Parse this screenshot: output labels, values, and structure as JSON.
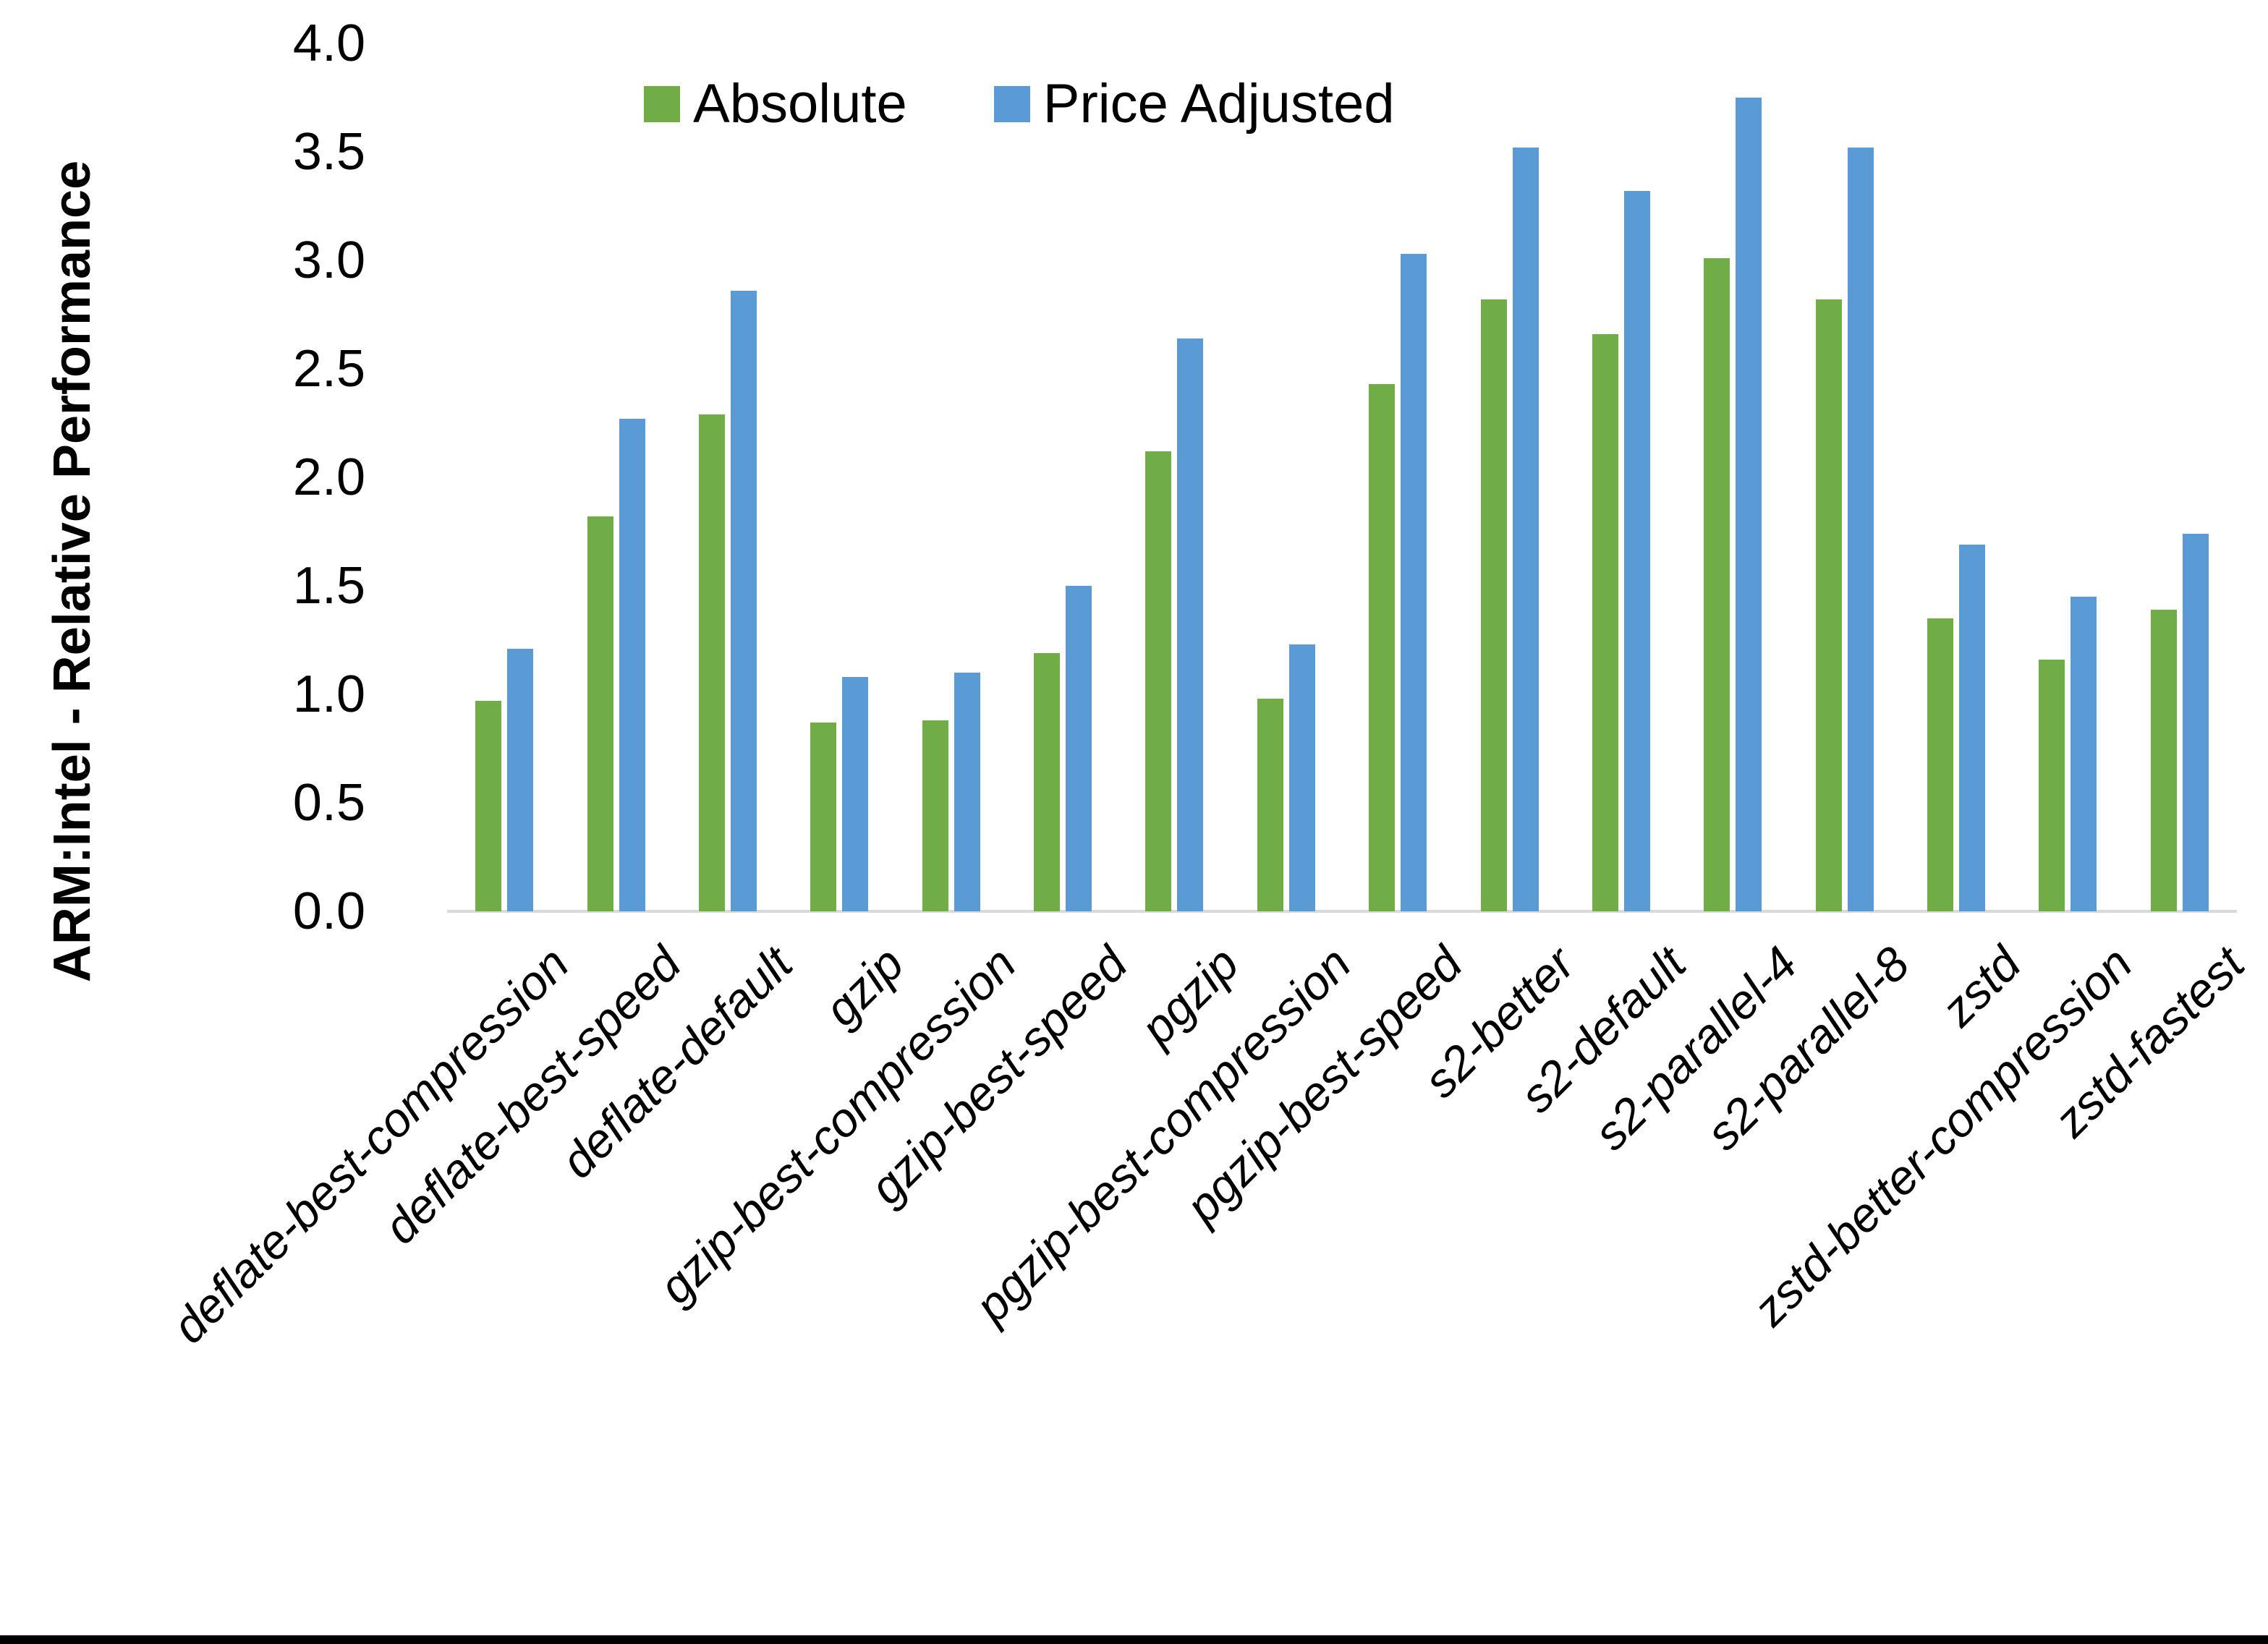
{
  "chart_data": {
    "type": "bar",
    "title": "",
    "xlabel": "",
    "ylabel": "ARM:Intel - Relative Performance",
    "ylim": [
      0.0,
      4.0
    ],
    "ytick_step": 0.5,
    "yticks": [
      "0.0",
      "0.5",
      "1.0",
      "1.5",
      "2.0",
      "2.5",
      "3.0",
      "3.5",
      "4.0"
    ],
    "grid": false,
    "legend_position": "top-center",
    "categories": [
      "deflate-best-compression",
      "deflate-best-speed",
      "deflate-default",
      "gzip",
      "gzip-best-compression",
      "gzip-best-speed",
      "pgzip",
      "pgzip-best-compression",
      "pgzip-best-speed",
      "s2-better",
      "s2-default",
      "s2-parallel-4",
      "s2-parallel-8",
      "zstd",
      "zstd-better-compression",
      "zstd-fastest"
    ],
    "series": [
      {
        "name": "Absolute",
        "color": "#70AD47",
        "values": [
          0.97,
          1.82,
          2.29,
          0.87,
          0.88,
          1.19,
          2.12,
          0.98,
          2.43,
          2.82,
          2.66,
          3.01,
          2.82,
          1.35,
          1.16,
          1.39
        ]
      },
      {
        "name": "Price Adjusted",
        "color": "#5B9BD5",
        "values": [
          1.21,
          2.27,
          2.86,
          1.08,
          1.1,
          1.5,
          2.64,
          1.23,
          3.03,
          3.52,
          3.32,
          3.75,
          3.52,
          1.69,
          1.45,
          1.74
        ]
      }
    ]
  },
  "colors": {
    "background": "#FFFFFF",
    "axis_line": "#D9D9D9",
    "text": "#000000",
    "bottom_edge": "#000000"
  }
}
